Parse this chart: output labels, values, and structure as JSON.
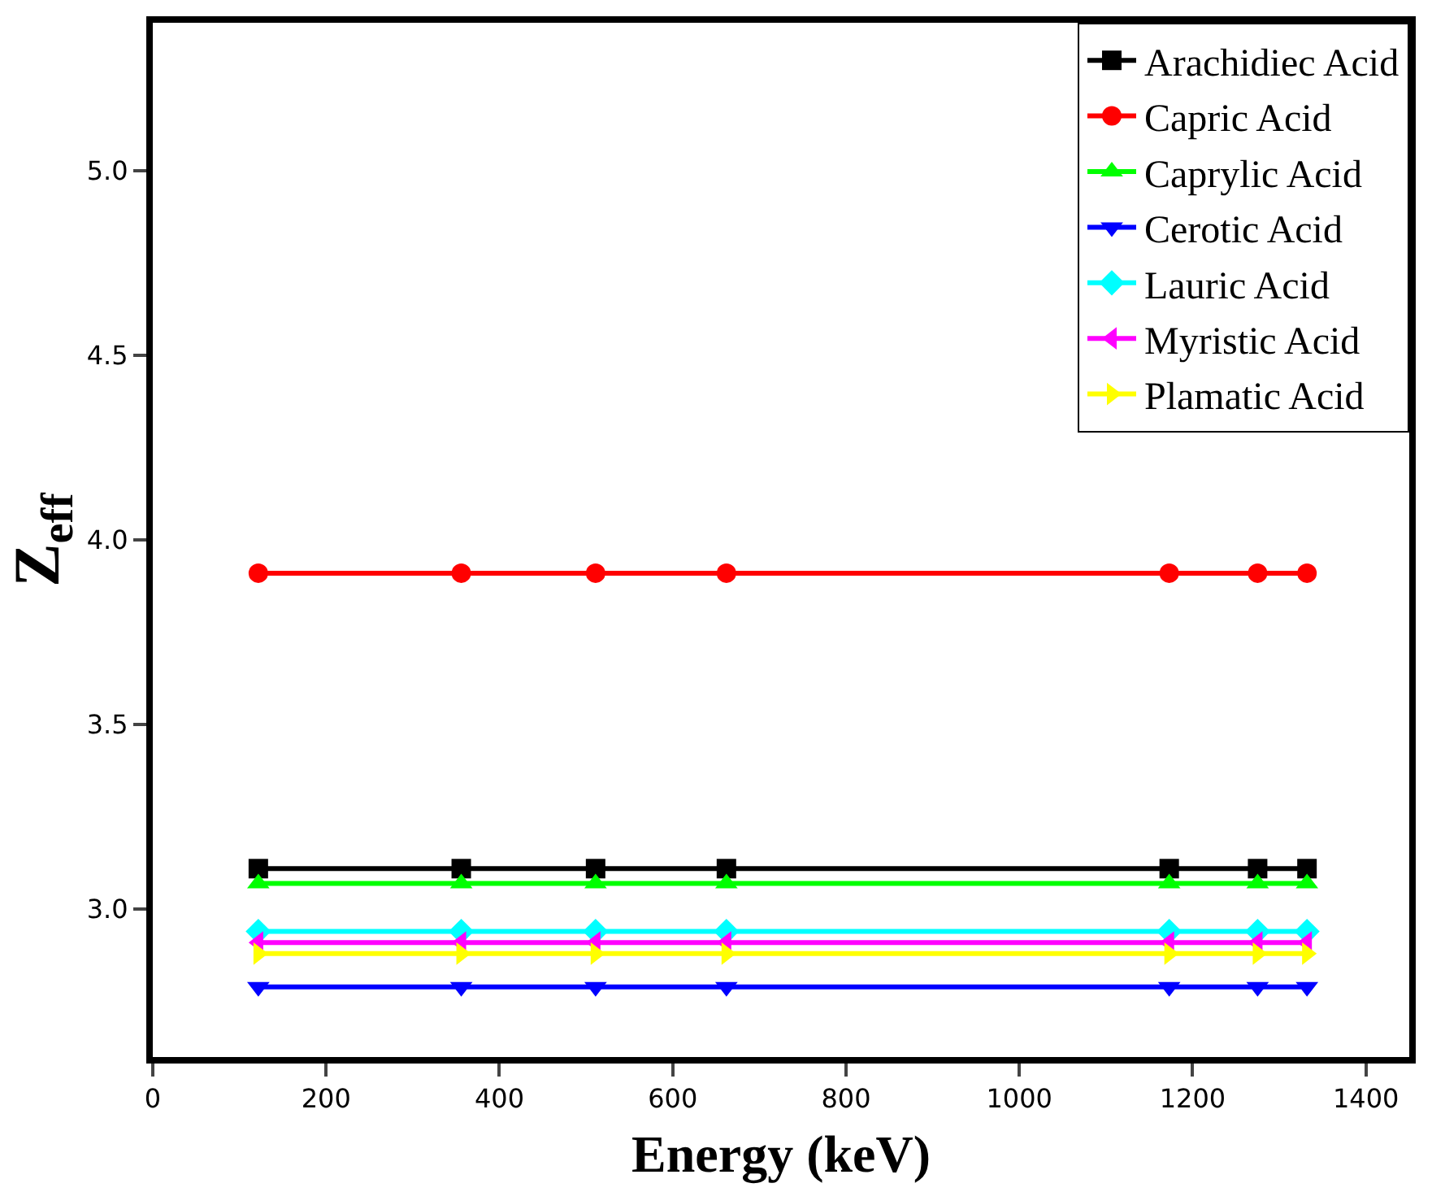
{
  "chart_data": {
    "type": "line",
    "xlabel": "Energy (keV)",
    "ylabel": "Z$_{eff}$",
    "x": [
      121.8,
      356,
      511,
      662,
      1173,
      1275,
      1332
    ],
    "series": [
      {
        "name": "Arachidiec Acid",
        "color": "#000000",
        "marker": "square",
        "values": [
          3.11,
          3.11,
          3.11,
          3.11,
          3.11,
          3.11,
          3.11
        ]
      },
      {
        "name": "Capric Acid",
        "color": "#ff0000",
        "marker": "circle",
        "values": [
          3.91,
          3.91,
          3.91,
          3.91,
          3.91,
          3.91,
          3.91
        ]
      },
      {
        "name": "Caprylic Acid",
        "color": "#00ff00",
        "marker": "triangle-up",
        "values": [
          3.07,
          3.07,
          3.07,
          3.07,
          3.07,
          3.07,
          3.07
        ]
      },
      {
        "name": "Cerotic Acid",
        "color": "#0000ff",
        "marker": "triangle-down",
        "values": [
          2.79,
          2.79,
          2.79,
          2.79,
          2.79,
          2.79,
          2.79
        ]
      },
      {
        "name": "Lauric Acid",
        "color": "#00ffff",
        "marker": "diamond",
        "values": [
          2.94,
          2.94,
          2.94,
          2.94,
          2.94,
          2.94,
          2.94
        ]
      },
      {
        "name": "Myristic Acid",
        "color": "#ff00ff",
        "marker": "triangle-left",
        "values": [
          2.91,
          2.91,
          2.91,
          2.91,
          2.91,
          2.91,
          2.91
        ]
      },
      {
        "name": "Plamatic Acid",
        "color": "#ffff00",
        "marker": "triangle-right",
        "values": [
          2.88,
          2.88,
          2.88,
          2.88,
          2.88,
          2.88,
          2.88
        ]
      }
    ],
    "xlim": [
      0,
      1450
    ],
    "xticks": [
      0,
      200,
      400,
      600,
      800,
      1000,
      1200,
      1400
    ],
    "ylim": [
      2.6,
      5.4
    ],
    "yticks": [
      {
        "value": 3,
        "label": "3.0"
      },
      {
        "value": 3.5,
        "label": "3.5"
      },
      {
        "value": 4,
        "label": "4.0"
      },
      {
        "value": 4.5,
        "label": "4.5"
      },
      {
        "value": 5,
        "label": "5.0"
      }
    ],
    "legend": "top right",
    "line_style": "solid"
  }
}
